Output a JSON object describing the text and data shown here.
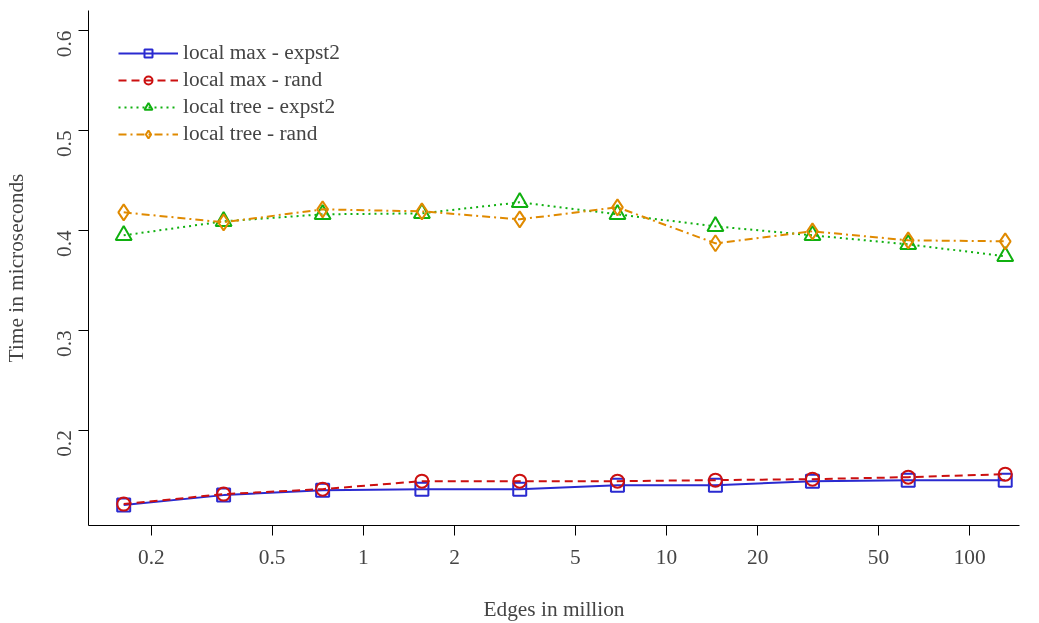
{
  "chart_data": {
    "type": "line",
    "xlabel": "Edges in million",
    "ylabel": "Time in microseconds",
    "log": "x",
    "x": [
      0.162,
      0.346,
      0.734,
      1.56,
      3.28,
      6.89,
      14.5,
      30.3,
      62.7,
      131
    ],
    "xlim": [
      0.124,
      146
    ],
    "xticks": [
      0.2,
      0.5,
      1,
      2,
      5,
      10,
      20,
      50,
      100
    ],
    "ylim": [
      0.1046,
      0.62
    ],
    "yticks": [
      0.2,
      0.3,
      0.4,
      0.5,
      0.6
    ],
    "grid": false,
    "legend": "top left",
    "series": [
      {
        "name": "local max - expst2",
        "color": "#2a2ad0",
        "marker": "square",
        "line_style": "solid",
        "values": [
          0.125,
          0.135,
          0.14,
          0.141,
          0.141,
          0.145,
          0.145,
          0.149,
          0.15,
          0.15
        ]
      },
      {
        "name": "local max - rand",
        "color": "#cc1010",
        "marker": "circle",
        "line_style": "dashed",
        "values": [
          0.126,
          0.136,
          0.141,
          0.149,
          0.149,
          0.149,
          0.15,
          0.151,
          0.153,
          0.156
        ]
      },
      {
        "name": "local tree - expst2",
        "color": "#10b010",
        "marker": "triangle",
        "line_style": "dotted",
        "values": [
          0.395,
          0.409,
          0.416,
          0.417,
          0.428,
          0.416,
          0.404,
          0.395,
          0.386,
          0.374
        ]
      },
      {
        "name": "local tree - rand",
        "color": "#e08a00",
        "marker": "diamond",
        "line_style": "dashdot",
        "values": [
          0.418,
          0.408,
          0.421,
          0.419,
          0.411,
          0.423,
          0.387,
          0.399,
          0.39,
          0.389
        ]
      }
    ]
  }
}
